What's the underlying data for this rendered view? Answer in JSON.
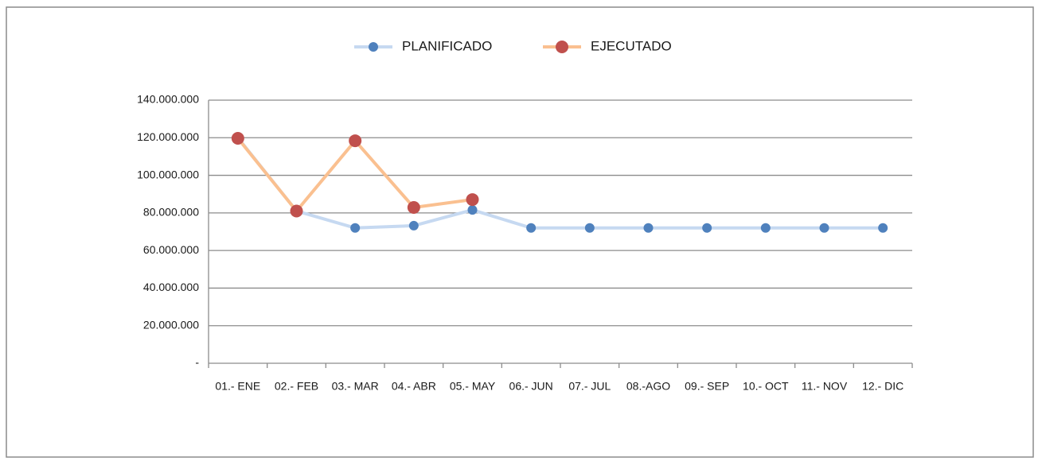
{
  "chart_data": {
    "type": "line",
    "categories": [
      "01.- ENE",
      "02.- FEB",
      "03.- MAR",
      "04.- ABR",
      "05.- MAY",
      "06.- JUN",
      "07.- JUL",
      "08.-AGO",
      "09.- SEP",
      "10.- OCT",
      "11.- NOV",
      "12.- DIC"
    ],
    "series": [
      {
        "name": "PLANIFICADO",
        "color": "#c6d9f1",
        "marker_color": "#4f81bd",
        "values": [
          120000000,
          81000000,
          72000000,
          73200000,
          81600000,
          72000000,
          72000000,
          72000000,
          72000000,
          72000000,
          72000000,
          72000000
        ]
      },
      {
        "name": "EJECUTADO",
        "color": "#fac090",
        "marker_color": "#c0504d",
        "values": [
          119700000,
          81000000,
          118400000,
          82900000,
          87100000,
          null,
          null,
          null,
          null,
          null,
          null,
          null
        ]
      }
    ],
    "ylim": [
      0,
      140000000
    ],
    "yticks": [
      {
        "value": 0,
        "label": "-"
      },
      {
        "value": 20000000,
        "label": "20.000.000"
      },
      {
        "value": 40000000,
        "label": "40.000.000"
      },
      {
        "value": 60000000,
        "label": "60.000.000"
      },
      {
        "value": 80000000,
        "label": "80.000.000"
      },
      {
        "value": 100000000,
        "label": "100.000.000"
      },
      {
        "value": 120000000,
        "label": "120.000.000"
      },
      {
        "value": 140000000,
        "label": "140.000.000"
      }
    ],
    "grid": true,
    "legend": "top"
  }
}
